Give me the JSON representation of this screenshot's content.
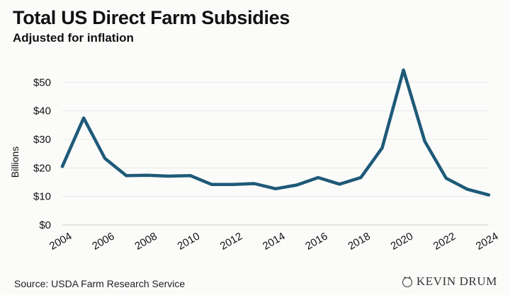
{
  "header": {
    "title": "Total US Direct Farm Subsidies",
    "subtitle": "Adjusted for inflation"
  },
  "footer": {
    "source": "Source: USDA Farm Research Service",
    "brand": "KEVIN DRUM"
  },
  "colors": {
    "line": "#1e5a78",
    "grid": "#e8e8e8",
    "background": "#fbfbfa"
  },
  "chart_data": {
    "type": "line",
    "title": "Total US Direct Farm Subsidies",
    "subtitle": "Adjusted for inflation",
    "xlabel": "",
    "ylabel": "Billions",
    "x": [
      2004,
      2005,
      2006,
      2007,
      2008,
      2009,
      2010,
      2011,
      2012,
      2013,
      2014,
      2015,
      2016,
      2017,
      2018,
      2019,
      2020,
      2021,
      2022,
      2023,
      2024
    ],
    "series": [
      {
        "values": [
          20.5,
          37.5,
          23.3,
          17.3,
          17.4,
          17.1,
          17.3,
          14.2,
          14.2,
          14.5,
          12.7,
          14.0,
          16.6,
          14.3,
          16.6,
          27.0,
          54.3,
          29.3,
          16.4,
          12.5,
          10.5
        ]
      }
    ],
    "xlim": [
      2004,
      2024
    ],
    "ylim": [
      0,
      60
    ],
    "x_ticks": [
      "2004",
      "2006",
      "2008",
      "2010",
      "2012",
      "2014",
      "2016",
      "2018",
      "2020",
      "2022",
      "2024"
    ],
    "y_ticks": [
      "$0",
      "$10",
      "$20",
      "$30",
      "$40",
      "$50"
    ],
    "grid": true,
    "legend": "none"
  }
}
